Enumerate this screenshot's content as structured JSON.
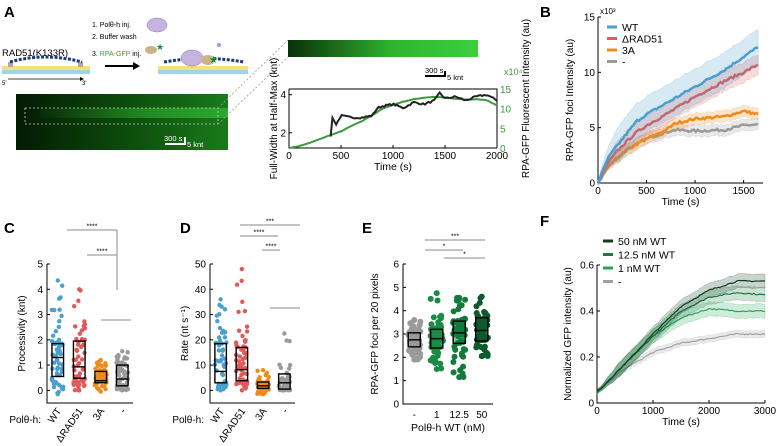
{
  "panel_labels": [
    "A",
    "B",
    "C",
    "D",
    "E",
    "F"
  ],
  "schematic": {
    "construct": "RAD51(K133R)",
    "steps": [
      "1. Polθ-h inj.",
      "2. Buffer wash",
      "3. RPA-GFP inj."
    ],
    "step3_prefix": "3. ",
    "step3_colored": "RPA-GFP",
    "step3_suffix": " inj.",
    "end5": "5'",
    "end3": "3'",
    "kymo_scale_time": "300 s",
    "kymo_scale_len": "5 knt",
    "green": "#3d9a3d"
  },
  "chart_data": [
    {
      "panel": "A",
      "type": "line",
      "xlabel": "Time (s)",
      "ylabel": "Full-Width at Half-Max (knt)",
      "y2label": "RPA-GFP Fluorescent Intensity (au)",
      "y2_multiplier": "x10⁴",
      "xlim": [
        0,
        2000
      ],
      "xticks": [
        0,
        500,
        1000,
        1500,
        2000
      ],
      "ylim": [
        1.2,
        4.3
      ],
      "yticks": [
        2,
        4
      ],
      "y2lim": [
        0,
        15
      ],
      "y2ticks": [
        0,
        5,
        10,
        15
      ],
      "series": [
        {
          "axis": "left",
          "color": "#222222",
          "x": [
            400,
            420,
            450,
            500,
            600,
            700,
            800,
            850,
            900,
            1000,
            1100,
            1200,
            1300,
            1400,
            1450,
            1500,
            1600,
            1700,
            1800,
            1900,
            2000
          ],
          "y": [
            1.8,
            2.9,
            2.4,
            2.9,
            2.8,
            2.8,
            2.9,
            3.3,
            3.4,
            3.5,
            3.3,
            3.6,
            3.5,
            3.7,
            4.1,
            3.8,
            3.9,
            3.7,
            3.9,
            4.0,
            3.7
          ]
        },
        {
          "axis": "right",
          "color": "#3d9a3d",
          "x": [
            0,
            100,
            200,
            300,
            400,
            500,
            600,
            700,
            800,
            900,
            1000,
            1100,
            1200,
            1300,
            1400,
            1500,
            1600,
            1700,
            1800,
            1900,
            2000
          ],
          "y": [
            0,
            0.5,
            1.3,
            2.3,
            3.3,
            4.2,
            5.6,
            6.8,
            8.3,
            10,
            11,
            11.8,
            12.4,
            12.8,
            13,
            12.8,
            12.5,
            12.3,
            12.4,
            12.2,
            10.8
          ]
        }
      ]
    },
    {
      "panel": "B",
      "type": "line",
      "xlabel": "Time (s)",
      "ylabel": "RPA-GFP foci Intensity (au)",
      "y_multiplier": "x10³",
      "xlim": [
        0,
        1700
      ],
      "xticks": [
        0,
        500,
        1000,
        1500
      ],
      "ylim": [
        0,
        15
      ],
      "yticks": [
        0,
        5,
        10,
        15
      ],
      "legend": "top-left",
      "series": [
        {
          "name": "WT",
          "color": "#4a9fcf",
          "x": [
            0,
            100,
            200,
            300,
            400,
            500,
            700,
            1000,
            1300,
            1500,
            1650
          ],
          "y": [
            0,
            2.2,
            3.4,
            4.5,
            5.6,
            6.2,
            7.2,
            8.7,
            10.2,
            11.4,
            12.3
          ],
          "band": 1.6
        },
        {
          "name": "ΔRAD51",
          "color": "#e05a5a",
          "x": [
            0,
            100,
            200,
            300,
            400,
            500,
            700,
            1000,
            1300,
            1500,
            1650
          ],
          "y": [
            0,
            1.8,
            2.9,
            3.8,
            4.6,
            5.2,
            6.2,
            7.8,
            9.2,
            10.0,
            10.7
          ],
          "band": 0.9
        },
        {
          "name": "3A",
          "color": "#f08a1a",
          "x": [
            0,
            100,
            200,
            300,
            400,
            500,
            700,
            800,
            1000,
            1300,
            1500,
            1650
          ],
          "y": [
            0,
            1.4,
            2.3,
            3.0,
            3.5,
            4.0,
            4.8,
            5.4,
            5.8,
            6.0,
            6.5,
            6.2
          ],
          "band": 0.5
        },
        {
          "name": "-",
          "color": "#9a9a9a",
          "x": [
            0,
            100,
            200,
            300,
            400,
            500,
            700,
            800,
            1000,
            1300,
            1500,
            1650
          ],
          "y": [
            0,
            1.4,
            2.3,
            3.0,
            3.5,
            4.0,
            4.6,
            4.8,
            4.7,
            4.8,
            5.2,
            5.3
          ],
          "band": 0.5
        }
      ]
    },
    {
      "panel": "C",
      "type": "box",
      "ylabel": "Processivity (knt)",
      "group_label": "Polθ-h:",
      "ylim": [
        -0.5,
        5
      ],
      "yticks": [
        0,
        1,
        2,
        3,
        4,
        5
      ],
      "categories": [
        "WT",
        "ΔRAD51",
        "3A",
        "-"
      ],
      "colors": [
        "#4a9fcf",
        "#e05a5a",
        "#f08a1a",
        "#9a9a9a"
      ],
      "median": [
        1.3,
        0.93,
        0.38,
        0.45
      ],
      "q1": [
        0.55,
        0.48,
        0.3,
        0.18
      ],
      "q3": [
        1.85,
        1.95,
        0.75,
        1.0
      ],
      "min": [
        -0.15,
        0.0,
        -0.05,
        0.0
      ],
      "max": [
        4.35,
        4.0,
        1.2,
        1.55
      ],
      "significance": [
        {
          "label": "****",
          "from": 0,
          "to": "3A/-"
        },
        {
          "label": "****",
          "from": 1,
          "to": "3A/-"
        }
      ]
    },
    {
      "panel": "D",
      "type": "box",
      "ylabel": "Rate (nt s⁻¹)",
      "group_label": "Polθ-h:",
      "ylim": [
        -5,
        50
      ],
      "yticks": [
        0,
        10,
        20,
        30,
        40,
        50
      ],
      "categories": [
        "WT",
        "ΔRAD51",
        "3A",
        "-"
      ],
      "colors": [
        "#4a9fcf",
        "#e05a5a",
        "#f08a1a",
        "#9a9a9a"
      ],
      "median": [
        7.5,
        8.2,
        1.8,
        3.0
      ],
      "q1": [
        3.0,
        3.8,
        0.8,
        0.5
      ],
      "q3": [
        18.5,
        17.0,
        3.3,
        6.5
      ],
      "min": [
        0,
        0,
        -1.5,
        0
      ],
      "max": [
        36,
        48,
        8,
        22.5
      ],
      "significance": [
        {
          "label": "***",
          "from": 0,
          "to": "3A/-"
        },
        {
          "label": "****",
          "from": 0,
          "to": "3A/-"
        },
        {
          "label": "****",
          "from": 1,
          "to": "3A/-"
        }
      ]
    },
    {
      "panel": "E",
      "type": "box",
      "ylabel": "RPA-GFP foci per 20 pixels",
      "xlabel": "Polθ-h WT (nM)",
      "ylim": [
        0,
        6
      ],
      "yticks": [
        0,
        1,
        2,
        3,
        4,
        5,
        6
      ],
      "categories": [
        "-",
        "1",
        "12.5",
        "50"
      ],
      "colors": [
        "#9a9a9a",
        "#1a8a45",
        "#137a3a",
        "#0e5a2c"
      ],
      "median": [
        2.75,
        2.8,
        3.05,
        3.15
      ],
      "q1": [
        2.45,
        2.4,
        2.6,
        2.7
      ],
      "q3": [
        3.05,
        3.2,
        3.55,
        3.7
      ],
      "min": [
        1.9,
        1.5,
        1.15,
        2.05
      ],
      "max": [
        3.6,
        4.75,
        4.55,
        4.6
      ],
      "significance": [
        {
          "label": "***",
          "from": 0,
          "to": 3
        },
        {
          "label": "*",
          "from": 0,
          "to": 2
        },
        {
          "label": "*",
          "from": 1,
          "to": 3
        }
      ]
    },
    {
      "panel": "F",
      "type": "line",
      "xlabel": "Time (s)",
      "ylabel": "Normalized GFP intensity (au)",
      "xlim": [
        0,
        3000
      ],
      "xticks": [
        0,
        1000,
        2000,
        3000
      ],
      "ylim": [
        0,
        0.6
      ],
      "yticks": [
        0,
        0.2,
        0.4,
        0.6
      ],
      "legend": "top-left",
      "series": [
        {
          "name": "50 nM WT",
          "color": "#0e3d22",
          "x": [
            0,
            100,
            500,
            1000,
            1500,
            2000,
            2500,
            3000
          ],
          "y": [
            0.05,
            0.07,
            0.17,
            0.3,
            0.42,
            0.49,
            0.53,
            0.53
          ],
          "band": 0.03
        },
        {
          "name": "12.5 nM WT",
          "color": "#1a7a40",
          "x": [
            0,
            100,
            500,
            1000,
            1500,
            2000,
            2500,
            3000
          ],
          "y": [
            0.05,
            0.07,
            0.17,
            0.29,
            0.4,
            0.46,
            0.48,
            0.47
          ],
          "band": 0.03
        },
        {
          "name": "1 nM WT",
          "color": "#2aa55a",
          "x": [
            0,
            100,
            500,
            1000,
            1500,
            2000,
            2500,
            3000
          ],
          "y": [
            0.04,
            0.07,
            0.17,
            0.29,
            0.37,
            0.41,
            0.4,
            0.4
          ],
          "band": 0.03
        },
        {
          "name": "-",
          "color": "#a0a0a0",
          "x": [
            0,
            100,
            500,
            1000,
            1500,
            2000,
            2500,
            3000
          ],
          "y": [
            0.05,
            0.07,
            0.15,
            0.22,
            0.26,
            0.28,
            0.3,
            0.3
          ],
          "band": 0.015
        }
      ]
    }
  ]
}
